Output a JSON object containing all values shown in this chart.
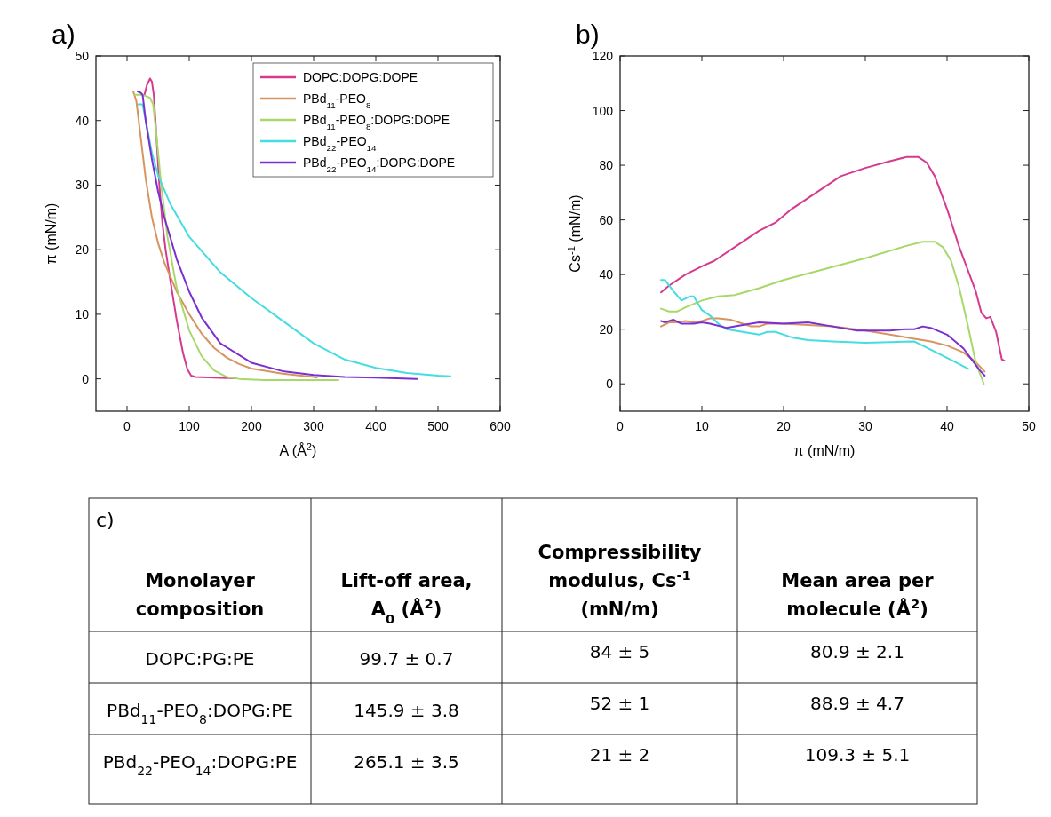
{
  "chart_data": [
    {
      "type": "line",
      "title": "a)",
      "xlabel": "A (Å$^{2}$)",
      "ylabel": "π (mN/m)",
      "xlim": [
        -50,
        600
      ],
      "xticks": [
        0,
        100,
        200,
        300,
        400,
        500,
        600
      ],
      "ylim": [
        -5,
        50
      ],
      "yticks": [
        0,
        10,
        20,
        30,
        40,
        50
      ],
      "grid": false,
      "legend": "top right",
      "line_style": "solid",
      "marker": "none",
      "series": [
        {
          "name": "DOPC:DOPG:DOPE",
          "color": "#d6398f",
          "x": [
            28,
            32,
            37,
            40,
            43,
            47,
            52,
            57,
            62,
            70,
            80,
            90,
            97,
            103,
            110,
            140,
            175
          ],
          "values": [
            44,
            45.5,
            46.5,
            46,
            44,
            38,
            30,
            24,
            20,
            15,
            9,
            4,
            1.5,
            0.5,
            0.3,
            0.2,
            0.1
          ]
        },
        {
          "name": "PBd$_{11}$-PEO$_{8}$",
          "color": "#d8945f",
          "x": [
            10,
            15,
            20,
            30,
            40,
            50,
            60,
            80,
            100,
            120,
            140,
            160,
            180,
            200,
            250,
            300,
            305
          ],
          "values": [
            44.5,
            43,
            39,
            31,
            25,
            21,
            18,
            13.5,
            10,
            7,
            4.8,
            3.3,
            2.3,
            1.6,
            0.8,
            0.3,
            0.2
          ]
        },
        {
          "name": "PBd$_{11}$-PEO$_{8}$:DOPG:DOPE",
          "color": "#a8d86a",
          "x": [
            12,
            20,
            30,
            37,
            42,
            47,
            55,
            65,
            80,
            100,
            120,
            140,
            160,
            180,
            220,
            300,
            340
          ],
          "values": [
            44,
            44,
            43.8,
            43.5,
            42.5,
            38,
            30,
            22,
            14,
            7.5,
            3.5,
            1.3,
            0.3,
            0,
            -0.2,
            -0.2,
            -0.2
          ]
        },
        {
          "name": "PBd$_{22}$-PEO$_{14}$",
          "color": "#45dde0",
          "x": [
            18,
            25,
            30,
            40,
            50,
            70,
            100,
            150,
            200,
            250,
            300,
            350,
            400,
            450,
            500,
            520
          ],
          "values": [
            42.5,
            42.5,
            40,
            35,
            31.5,
            27,
            22,
            16.5,
            12.5,
            9,
            5.5,
            3,
            1.7,
            0.9,
            0.5,
            0.4
          ]
        },
        {
          "name": "PBd$_{22}$-PEO$_{14}$:DOPG:DOPE",
          "color": "#7b2fd0",
          "x": [
            17,
            22,
            25,
            30,
            40,
            50,
            60,
            80,
            100,
            120,
            150,
            200,
            250,
            300,
            350,
            400,
            466
          ],
          "values": [
            44.5,
            44.3,
            44,
            40,
            34,
            29,
            25,
            18.5,
            13.5,
            9.5,
            5.5,
            2.5,
            1.2,
            0.6,
            0.3,
            0.2,
            0
          ]
        }
      ]
    },
    {
      "type": "line",
      "title": "b)",
      "xlabel": "π (mN/m)",
      "ylabel": "Cs$^{-1}$ (mN/m)",
      "xlim": [
        0,
        50
      ],
      "xticks": [
        0,
        10,
        20,
        30,
        40,
        50
      ],
      "ylim": [
        -10,
        120
      ],
      "yticks": [
        0,
        20,
        40,
        60,
        80,
        100,
        120
      ],
      "grid": false,
      "line_style": "solid",
      "marker": "none",
      "series": [
        {
          "color": "#d6398f",
          "x": [
            5,
            6,
            8,
            10,
            11.5,
            14,
            17,
            19,
            21,
            24,
            27,
            30,
            33,
            35,
            36.5,
            37.5,
            38.5,
            40,
            41.5,
            42.5,
            43.5,
            44.2,
            44.8,
            45.3,
            46,
            46.7,
            47
          ],
          "values": [
            33.5,
            36,
            40,
            43,
            45,
            50,
            56,
            59,
            64,
            70,
            76,
            79,
            81.5,
            83,
            83,
            81,
            76,
            64,
            50,
            42,
            34,
            26,
            24,
            24.5,
            19,
            9,
            8.5
          ]
        },
        {
          "color": "#d8945f",
          "x": [
            5,
            6,
            7,
            8,
            9,
            10,
            11,
            12,
            13.5,
            15,
            16,
            17,
            18,
            20,
            23,
            26,
            30,
            33,
            36,
            38,
            40,
            42,
            43.5,
            44.6
          ],
          "values": [
            21,
            22.5,
            22.5,
            23,
            22.5,
            23,
            24,
            24,
            23.5,
            22,
            21,
            21,
            22,
            22,
            21.5,
            21,
            19.5,
            18,
            16.5,
            15.5,
            14,
            11.5,
            8,
            4.5
          ]
        },
        {
          "color": "#a8d86a",
          "x": [
            5,
            6,
            7,
            8,
            10,
            12,
            14,
            17,
            20,
            25,
            30,
            35,
            37,
            38.5,
            39.5,
            40.5,
            41.5,
            42.5,
            43.5,
            44.5
          ],
          "values": [
            27.5,
            26.5,
            26.5,
            28,
            30.5,
            32,
            32.5,
            35,
            38,
            42,
            46,
            50.5,
            52,
            52,
            50,
            45,
            35,
            22,
            8,
            0
          ]
        },
        {
          "color": "#45dde0",
          "x": [
            5,
            5.5,
            6.5,
            7.5,
            8.5,
            9,
            10,
            11,
            12,
            13,
            15,
            17,
            18,
            19,
            21,
            23,
            26,
            30,
            33,
            36,
            37,
            39,
            41,
            42.6
          ],
          "values": [
            38,
            38,
            34,
            30.5,
            32,
            32,
            27,
            25,
            22,
            20,
            19,
            18,
            19,
            19,
            17,
            16,
            15.5,
            15,
            15.3,
            15.5,
            14,
            11,
            8,
            5.5
          ]
        },
        {
          "color": "#7b2fd0",
          "x": [
            5,
            5.5,
            6.5,
            7.5,
            9,
            10,
            11,
            13,
            15,
            17,
            20,
            23,
            26,
            29,
            33,
            35,
            36,
            37,
            38,
            40,
            42,
            43,
            44,
            44.6
          ],
          "values": [
            23,
            22.5,
            23.5,
            22,
            22,
            22.5,
            22,
            20.5,
            21.5,
            22.5,
            22,
            22.5,
            21,
            19.5,
            19.5,
            20,
            20,
            21,
            20.5,
            18,
            13,
            9,
            5,
            3
          ]
        }
      ]
    },
    {
      "type": "other",
      "title": "c)",
      "categories": [
        "Monolayer composition",
        "Lift-off area, A$_{0}$ (Å$^{2}$)",
        "Compressibility modulus, Cs$^{-1}$ (mN/m)",
        "Mean area per molecule (Å$^{2}$)"
      ],
      "y_categories": [
        "DOPC:PG:PE",
        "PBd$_{11}$-PEO$_{8}$:DOPG:PE",
        "PBd$_{22}$-PEO$_{14}$:DOPG:PE"
      ],
      "cell_labels": [
        [
          "99.7 ± 0.7",
          "84 ± 5",
          "80.9 ± 2.1"
        ],
        [
          "145.9 ± 3.8",
          "52 ± 1",
          "88.9 ± 4.7"
        ],
        [
          "265.1 ± 3.5",
          "21 ± 2",
          "109.3 ± 5.1"
        ]
      ]
    }
  ]
}
